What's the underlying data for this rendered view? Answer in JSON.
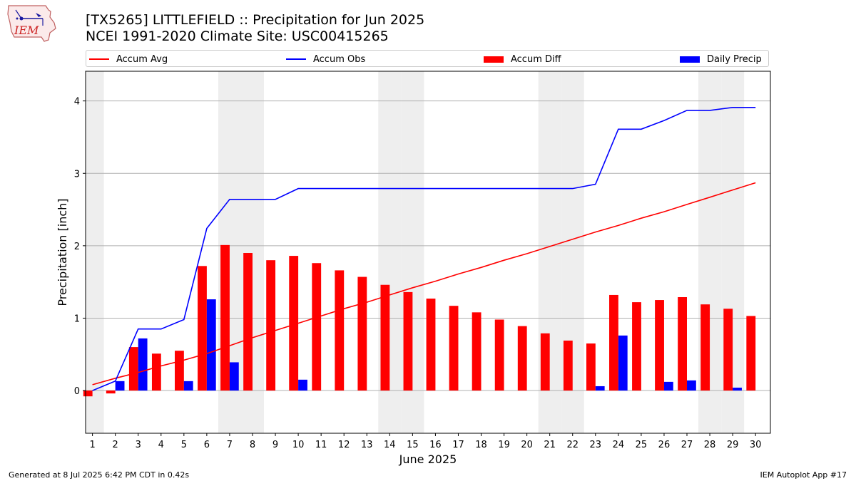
{
  "header": {
    "title_line1": "[TX5265] LITTLEFIELD :: Precipitation for Jun 2025",
    "title_line2": "NCEI 1991-2020 Climate Site: USC00415265"
  },
  "logo": {
    "icon": "iem-logo-icon",
    "text": "IEM"
  },
  "footer": {
    "left": "Generated at 8 Jul 2025 6:42 PM CDT in 0.42s",
    "right": "IEM Autoplot App #17"
  },
  "colors": {
    "avg": "#ff0000",
    "obs": "#0000ff",
    "diff": "#ff0000",
    "daily": "#0000ff",
    "weekend": "#eeeeee",
    "grid": "#b0b0b0"
  },
  "chart_data": {
    "type": "bar",
    "xlabel": "June 2025",
    "ylabel": "Precipitation [inch]",
    "ylim": [
      -0.59,
      4.41
    ],
    "yticks": [
      0,
      1,
      2,
      3,
      4
    ],
    "grid": "horizontal",
    "legend_placement": "top",
    "days": [
      1,
      2,
      3,
      4,
      5,
      6,
      7,
      8,
      9,
      10,
      11,
      12,
      13,
      14,
      15,
      16,
      17,
      18,
      19,
      20,
      21,
      22,
      23,
      24,
      25,
      26,
      27,
      28,
      29,
      30
    ],
    "shaded_days": [
      1,
      7,
      8,
      14,
      15,
      21,
      22,
      28,
      29
    ],
    "series": [
      {
        "name": "Accum Avg",
        "kind": "line",
        "values": [
          0.08,
          0.17,
          0.25,
          0.34,
          0.42,
          0.51,
          0.62,
          0.73,
          0.83,
          0.93,
          1.03,
          1.13,
          1.22,
          1.32,
          1.42,
          1.51,
          1.61,
          1.7,
          1.8,
          1.89,
          1.99,
          2.09,
          2.19,
          2.28,
          2.38,
          2.47,
          2.57,
          2.67,
          2.77,
          2.87
        ]
      },
      {
        "name": "Accum Obs",
        "kind": "line",
        "values": [
          0.0,
          0.13,
          0.85,
          0.85,
          0.98,
          2.24,
          2.64,
          2.64,
          2.64,
          2.79,
          2.79,
          2.79,
          2.79,
          2.79,
          2.79,
          2.79,
          2.79,
          2.79,
          2.79,
          2.79,
          2.79,
          2.79,
          2.85,
          3.61,
          3.61,
          3.73,
          3.87,
          3.87,
          3.91,
          3.91
        ]
      },
      {
        "name": "Accum Diff",
        "kind": "bar",
        "values": [
          -0.08,
          -0.04,
          0.6,
          0.51,
          0.55,
          1.72,
          2.01,
          1.9,
          1.8,
          1.86,
          1.76,
          1.66,
          1.57,
          1.46,
          1.36,
          1.27,
          1.17,
          1.08,
          0.98,
          0.89,
          0.79,
          0.69,
          0.65,
          1.32,
          1.22,
          1.25,
          1.29,
          1.19,
          1.13,
          1.03
        ]
      },
      {
        "name": "Daily Precip",
        "kind": "bar",
        "values": [
          0.0,
          0.13,
          0.72,
          0.0,
          0.13,
          1.26,
          0.39,
          0.0,
          0.0,
          0.15,
          0.0,
          0.0,
          0.0,
          0.0,
          0.0,
          0.0,
          0.0,
          0.0,
          0.0,
          0.0,
          0.0,
          0.0,
          0.06,
          0.76,
          0.0,
          0.12,
          0.14,
          0.0,
          0.04,
          0.0
        ]
      }
    ]
  }
}
